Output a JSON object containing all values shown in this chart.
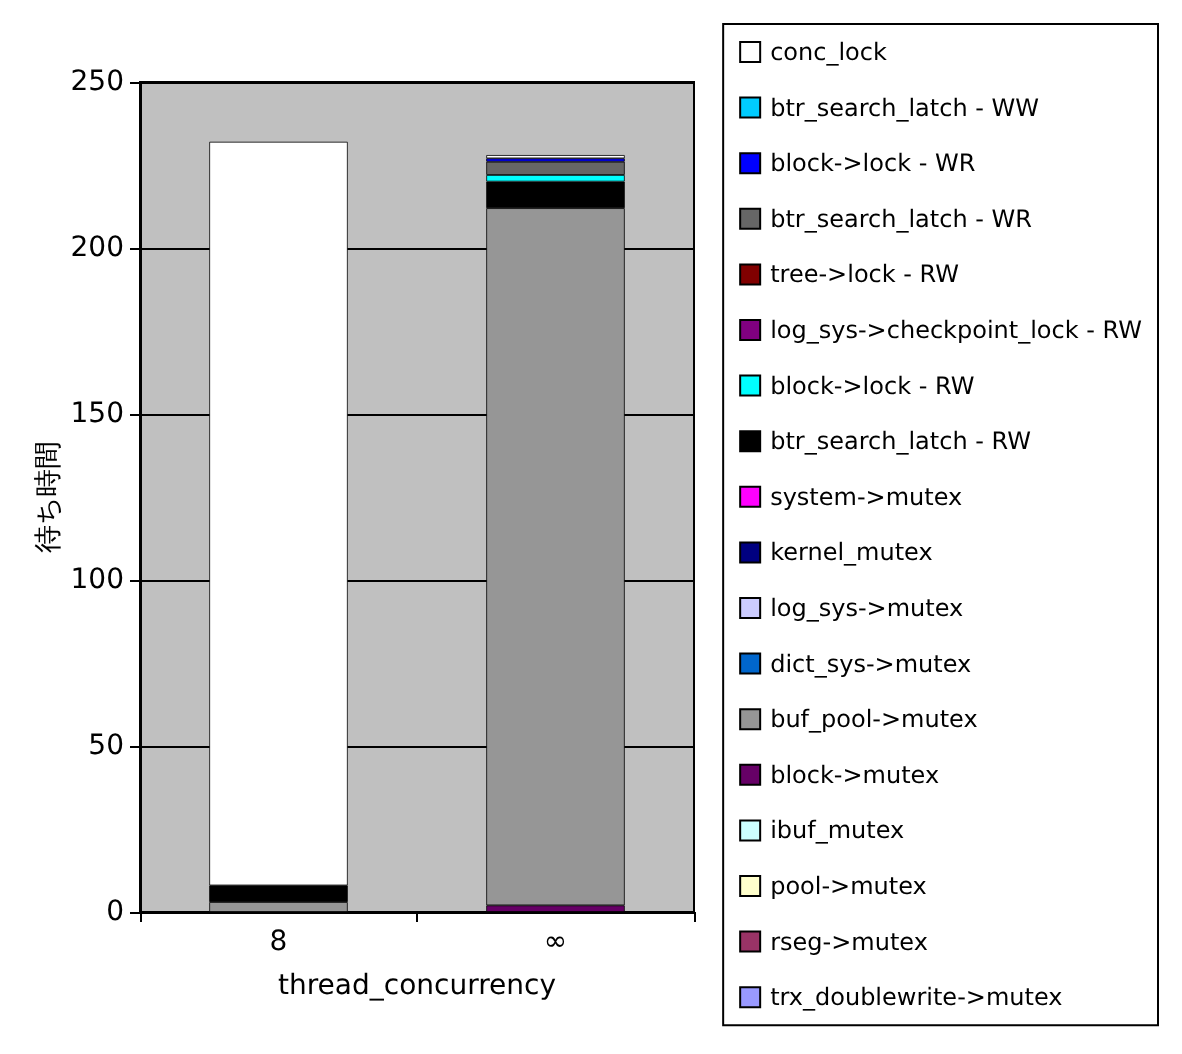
{
  "chart_data": {
    "type": "bar",
    "stacked": true,
    "xlabel": "thread_concurrency",
    "ylabel": "待ち時間",
    "categories": [
      "8",
      "∞"
    ],
    "ylim": [
      0,
      250
    ],
    "yticks": [
      0,
      50,
      100,
      150,
      200,
      250
    ],
    "grid": "y",
    "legend": "right",
    "series": [
      {
        "name": "trx_doublewrite->mutex",
        "color": "#9999ff",
        "values": [
          0,
          0
        ]
      },
      {
        "name": "rseg->mutex",
        "color": "#993366",
        "values": [
          0,
          0
        ]
      },
      {
        "name": "pool->mutex",
        "color": "#ffffcc",
        "values": [
          0,
          0
        ]
      },
      {
        "name": "ibuf_mutex",
        "color": "#ccffff",
        "values": [
          0,
          0
        ]
      },
      {
        "name": "block->mutex",
        "color": "#660066",
        "values": [
          0,
          2
        ]
      },
      {
        "name": "buf_pool->mutex",
        "color": "#969696",
        "values": [
          3,
          210
        ]
      },
      {
        "name": "dict_sys->mutex",
        "color": "#0066cc",
        "values": [
          0,
          0
        ]
      },
      {
        "name": "log_sys->mutex",
        "color": "#ccccff",
        "values": [
          0,
          0
        ]
      },
      {
        "name": "kernel_mutex",
        "color": "#000080",
        "values": [
          0,
          0
        ]
      },
      {
        "name": "system->mutex",
        "color": "#ff00ff",
        "values": [
          0,
          0
        ]
      },
      {
        "name": "btr_search_latch - RW",
        "color": "#000000",
        "values": [
          5,
          8
        ]
      },
      {
        "name": "block->lock - RW",
        "color": "#00ffff",
        "values": [
          0,
          2
        ]
      },
      {
        "name": "log_sys->checkpoint_lock - RW",
        "color": "#800080",
        "values": [
          0,
          0
        ]
      },
      {
        "name": "tree->lock - RW",
        "color": "#800000",
        "values": [
          0,
          0
        ]
      },
      {
        "name": "btr_search_latch - WR",
        "color": "#666666",
        "values": [
          0,
          4
        ]
      },
      {
        "name": "block->lock - WR",
        "color": "#0000ff",
        "values": [
          0,
          1
        ]
      },
      {
        "name": "btr_search_latch - WW",
        "color": "#00ccff",
        "values": [
          0,
          0
        ]
      },
      {
        "name": "conc_lock",
        "color": "#ffffff",
        "values": [
          224,
          1
        ]
      }
    ]
  }
}
